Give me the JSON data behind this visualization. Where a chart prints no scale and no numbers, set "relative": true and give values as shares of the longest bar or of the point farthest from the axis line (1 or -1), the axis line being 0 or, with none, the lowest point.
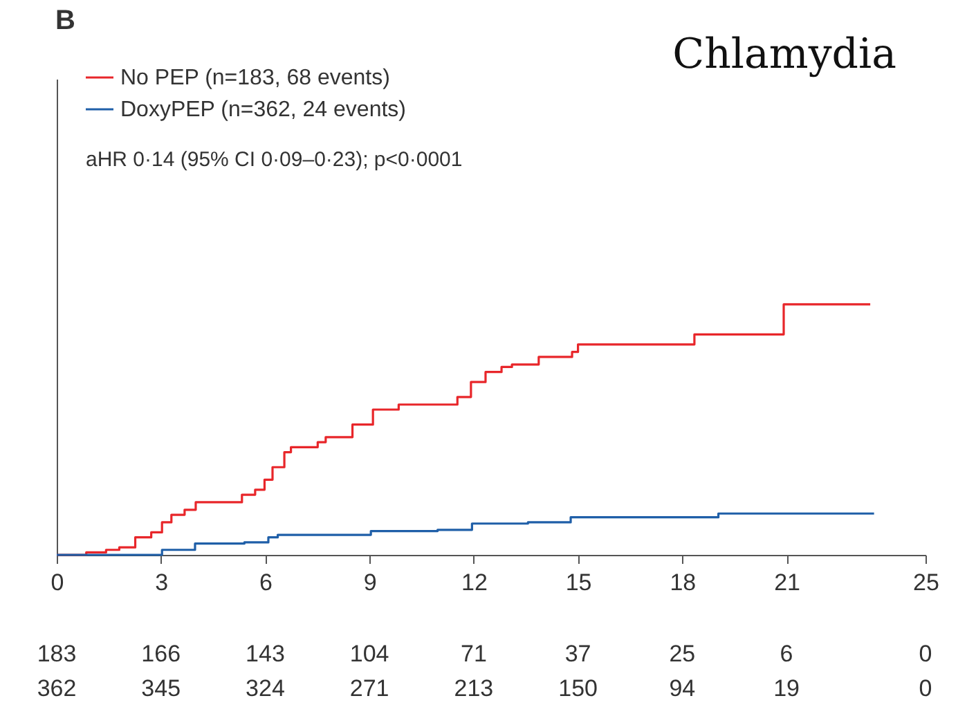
{
  "chart_data": {
    "type": "step",
    "title": "Chlamydia",
    "relative": true,
    "legend": "top left",
    "line_style": "solid",
    "xlim": [
      0,
      25
    ],
    "xticks": [
      0,
      3,
      6,
      9,
      12,
      15,
      18,
      21,
      25
    ],
    "annotations": [
      "B",
      "aHR 0·14 (95% CI 0·09–0·23); p<0·0001",
      "183",
      "166",
      "143",
      "104",
      "71",
      "37",
      "25",
      "6",
      "0",
      "362",
      "345",
      "324",
      "271",
      "213",
      "150",
      "94",
      "19",
      "0"
    ],
    "series": [
      {
        "name": "No PEP (n=183, 68 events)",
        "color": "#e8262a",
        "x": [
          0,
          0.85,
          1.42,
          1.8,
          2.26,
          2.72,
          3.03,
          3.3,
          3.68,
          4.0,
          5.33,
          5.71,
          5.98,
          6.21,
          6.55,
          6.74,
          7.51,
          7.74,
          8.51,
          9.1,
          9.84,
          11.53,
          11.92,
          12.34,
          12.8,
          13.1,
          13.87,
          14.83,
          15.0,
          18.35,
          20.92,
          23.41
        ],
        "values": [
          0,
          0.01,
          0.02,
          0.03,
          0.07,
          0.09,
          0.13,
          0.16,
          0.18,
          0.21,
          0.24,
          0.26,
          0.3,
          0.35,
          0.41,
          0.43,
          0.45,
          0.47,
          0.52,
          0.58,
          0.6,
          0.63,
          0.69,
          0.73,
          0.75,
          0.76,
          0.79,
          0.81,
          0.84,
          0.88,
          1.0,
          1.0
        ]
      },
      {
        "name": "DoxyPEP (n=362, 24 events)",
        "color": "#1f5fa8",
        "x": [
          0,
          3.03,
          3.98,
          5.4,
          6.09,
          6.36,
          9.04,
          10.96,
          11.95,
          13.56,
          14.79,
          19.04,
          23.52
        ],
        "values": [
          0,
          0.02,
          0.045,
          0.05,
          0.07,
          0.08,
          0.095,
          0.1,
          0.125,
          0.13,
          0.15,
          0.165,
          0.165
        ]
      }
    ]
  }
}
